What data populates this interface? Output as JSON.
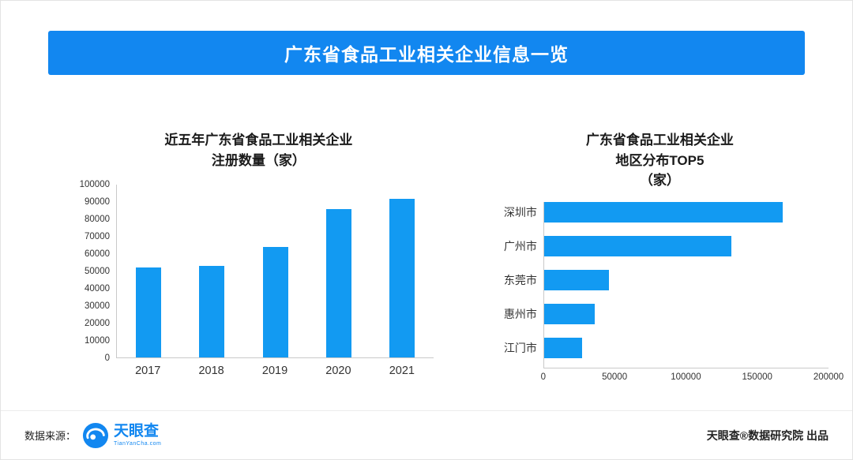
{
  "banner": {
    "title": "广东省食品工业相关企业信息一览"
  },
  "colors": {
    "banner": "#1287f0",
    "bar": "#129af2"
  },
  "chart_data": [
    {
      "type": "bar",
      "orientation": "vertical",
      "title": "近五年广东省食品工业相关企业\n注册数量（家）",
      "categories": [
        "2017",
        "2018",
        "2019",
        "2020",
        "2021"
      ],
      "values": [
        52000,
        53000,
        64000,
        86000,
        92000
      ],
      "xlabel": "",
      "ylabel": "",
      "ylim": [
        0,
        100000
      ],
      "ytick_step": 10000,
      "grid": false,
      "legend": false
    },
    {
      "type": "bar",
      "orientation": "horizontal",
      "title": "广东省食品工业相关企业\n地区分布TOP5\n（家）",
      "categories": [
        "深圳市",
        "广州市",
        "东莞市",
        "惠州市",
        "江门市"
      ],
      "values": [
        168000,
        132000,
        46000,
        36000,
        27000
      ],
      "xlabel": "",
      "ylabel": "",
      "xlim": [
        0,
        200000
      ],
      "xticks": [
        0,
        50000,
        100000,
        150000,
        200000
      ],
      "grid": false,
      "legend": false
    }
  ],
  "footer": {
    "source_label": "数据来源：",
    "logo_name": "天眼查",
    "logo_domain": "TianYanCha.com",
    "producer": "天眼查®数据研究院 出品"
  }
}
